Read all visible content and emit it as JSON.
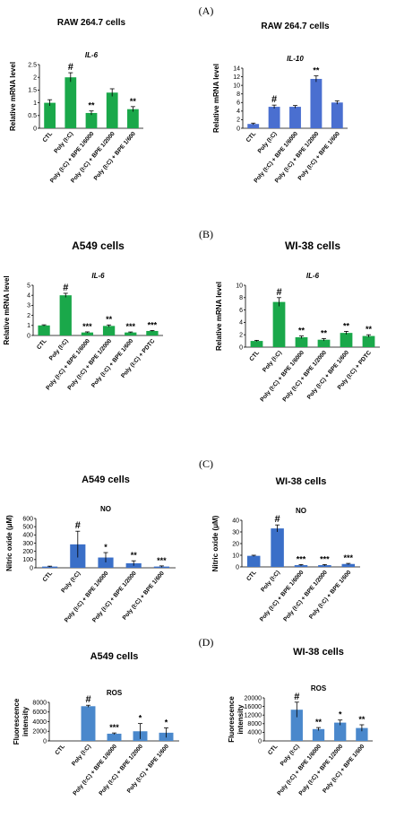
{
  "panel_labels": [
    "(A)",
    "(B)",
    "(C)",
    "(D)"
  ],
  "chart_data": [
    {
      "type": "bar",
      "panel": "(A)",
      "cell_title": "RAW 264.7 cells",
      "gene": "IL-6",
      "ylabel": "Relative mRNA level",
      "categories": [
        "CTL",
        "Poly (I:C)",
        "Poly (I:C) + BPE 1/6000",
        "Poly (I:C) + BPE 1/2000",
        "Poly (I:C) + BPE 1/600"
      ],
      "values": [
        1.0,
        2.0,
        0.6,
        1.4,
        0.75
      ],
      "errors": [
        0.12,
        0.18,
        0.08,
        0.15,
        0.1
      ],
      "annotations": [
        "",
        "#",
        "**",
        "",
        "**"
      ],
      "ylim": [
        0,
        2.5
      ],
      "yticks": [
        "0",
        "0.5",
        "1",
        "1.5",
        "2",
        "2.5"
      ],
      "bar_color": "#1aa84a"
    },
    {
      "type": "bar",
      "panel": "(A)",
      "cell_title": "RAW 264.7 cells",
      "gene": "IL-10",
      "ylabel": "Relative mRNA level",
      "categories": [
        "CTL",
        "Poly (I:C)",
        "Poly (I:C) + BPE 1/6000",
        "Poly (I:C) + BPE 1/2000",
        "Poly (I:C) + BPE 1/600"
      ],
      "values": [
        1.0,
        5.0,
        5.0,
        11.5,
        6.0
      ],
      "errors": [
        0.2,
        0.4,
        0.3,
        0.7,
        0.4
      ],
      "annotations": [
        "",
        "#",
        "",
        "**",
        ""
      ],
      "ylim": [
        0,
        14
      ],
      "yticks": [
        "0",
        "2",
        "4",
        "6",
        "8",
        "10",
        "12",
        "14"
      ],
      "bar_color": "#4a6fd0"
    },
    {
      "type": "bar",
      "panel": "(B)",
      "cell_title": "A549 cells",
      "gene": "IL-6",
      "ylabel": "Relative mRNA level",
      "categories": [
        "CTL",
        "Poly (I:C)",
        "Poly (I:C) + BPE 1/6000",
        "Poly (I:C) + BPE 1/2000",
        "Poly (I:C) + BPE 1/600",
        "Poly (I:C) + PDTC"
      ],
      "values": [
        1.0,
        4.0,
        0.3,
        0.95,
        0.3,
        0.45
      ],
      "errors": [
        0.06,
        0.2,
        0.06,
        0.1,
        0.05,
        0.05
      ],
      "annotations": [
        "",
        "#",
        "***",
        "**",
        "***",
        "***"
      ],
      "ylim": [
        0,
        5
      ],
      "yticks": [
        "0",
        "1",
        "2",
        "3",
        "4",
        "5"
      ],
      "bar_color": "#1aa84a"
    },
    {
      "type": "bar",
      "panel": "(B)",
      "cell_title": "WI-38 cells",
      "gene": "IL-6",
      "ylabel": "Relative mRNA level",
      "categories": [
        "CTL",
        "Poly (I:C)",
        "Poly (I:C) + BPE 1/6000",
        "Poly (I:C) + BPE 1/2000",
        "Poly (I:C) + BPE 1/600",
        "Poly (I:C) + PDTC"
      ],
      "values": [
        1.0,
        7.3,
        1.6,
        1.2,
        2.3,
        1.8
      ],
      "errors": [
        0.1,
        0.7,
        0.2,
        0.2,
        0.25,
        0.2
      ],
      "annotations": [
        "",
        "#",
        "**",
        "**",
        "**",
        "**"
      ],
      "ylim": [
        0,
        10
      ],
      "yticks": [
        "0",
        "2",
        "4",
        "6",
        "8",
        "10"
      ],
      "bar_color": "#1aa84a"
    },
    {
      "type": "bar",
      "panel": "(C)",
      "cell_title": "A549 cells",
      "gene": "NO",
      "ylabel": "Nitric oxide (μM)",
      "categories": [
        "CTL",
        "Poly (I:C)",
        "Poly (I:C) + BPE 1/6000",
        "Poly (I:C) + BPE 1/2000",
        "Poly (I:C) + BPE 1/600"
      ],
      "values": [
        15,
        285,
        125,
        55,
        15
      ],
      "errors": [
        5,
        160,
        60,
        30,
        8
      ],
      "annotations": [
        "",
        "#",
        "*",
        "**",
        "***"
      ],
      "ylim": [
        0,
        600
      ],
      "yticks": [
        "0",
        "100",
        "200",
        "300",
        "400",
        "500",
        "600"
      ],
      "bar_color": "#3a6fc8"
    },
    {
      "type": "bar",
      "panel": "(C)",
      "cell_title": "WI-38 cells",
      "gene": "NO",
      "ylabel": "Nitric oxide (μM)",
      "categories": [
        "CTL",
        "Poly (I:C)",
        "Poly (I:C) + BPE 1/6000",
        "Poly (I:C) + BPE 1/2000",
        "Poly (I:C) + BPE 1/600"
      ],
      "values": [
        9.5,
        33,
        1.5,
        1.5,
        2.5
      ],
      "errors": [
        0.5,
        3,
        0.5,
        0.5,
        0.5
      ],
      "annotations": [
        "",
        "#",
        "***",
        "***",
        "***"
      ],
      "ylim": [
        0,
        40
      ],
      "yticks": [
        "0",
        "10",
        "20",
        "30",
        "40"
      ],
      "bar_color": "#3a6fc8"
    },
    {
      "type": "bar",
      "panel": "(D)",
      "cell_title": "A549 cells",
      "gene": "ROS",
      "ylabel": "Fluorescence intensity",
      "categories": [
        "CTL",
        "Poly (I:C)",
        "Poly (I:C) + BPE 1/6000",
        "Poly (I:C) + BPE 1/2000",
        "Poly (I:C) + BPE 1/600"
      ],
      "values": [
        0,
        7200,
        1500,
        2000,
        1700
      ],
      "errors": [
        0,
        200,
        150,
        1600,
        1000
      ],
      "annotations": [
        "",
        "#",
        "***",
        "*",
        "*"
      ],
      "ylim": [
        0,
        8000
      ],
      "yticks": [
        "0",
        "2000",
        "4000",
        "6000",
        "8000"
      ],
      "bar_color": "#4a88cc"
    },
    {
      "type": "bar",
      "panel": "(D)",
      "cell_title": "WI-38 cells",
      "gene": "ROS",
      "ylabel": "Fluorescence intensity",
      "categories": [
        "CTL",
        "Poly (I:C)",
        "Poly (I:C) + BPE 1/6000",
        "Poly (I:C) + BPE 1/2000",
        "Poly (I:C) + BPE 1/600"
      ],
      "values": [
        0,
        14500,
        5500,
        8500,
        6000
      ],
      "errors": [
        0,
        3500,
        700,
        1200,
        1500
      ],
      "annotations": [
        "",
        "#",
        "**",
        "*",
        "**"
      ],
      "ylim": [
        0,
        20000
      ],
      "yticks": [
        "0",
        "4000",
        "8000",
        "12000",
        "16000",
        "20000"
      ],
      "bar_color": "#4a88cc"
    }
  ]
}
